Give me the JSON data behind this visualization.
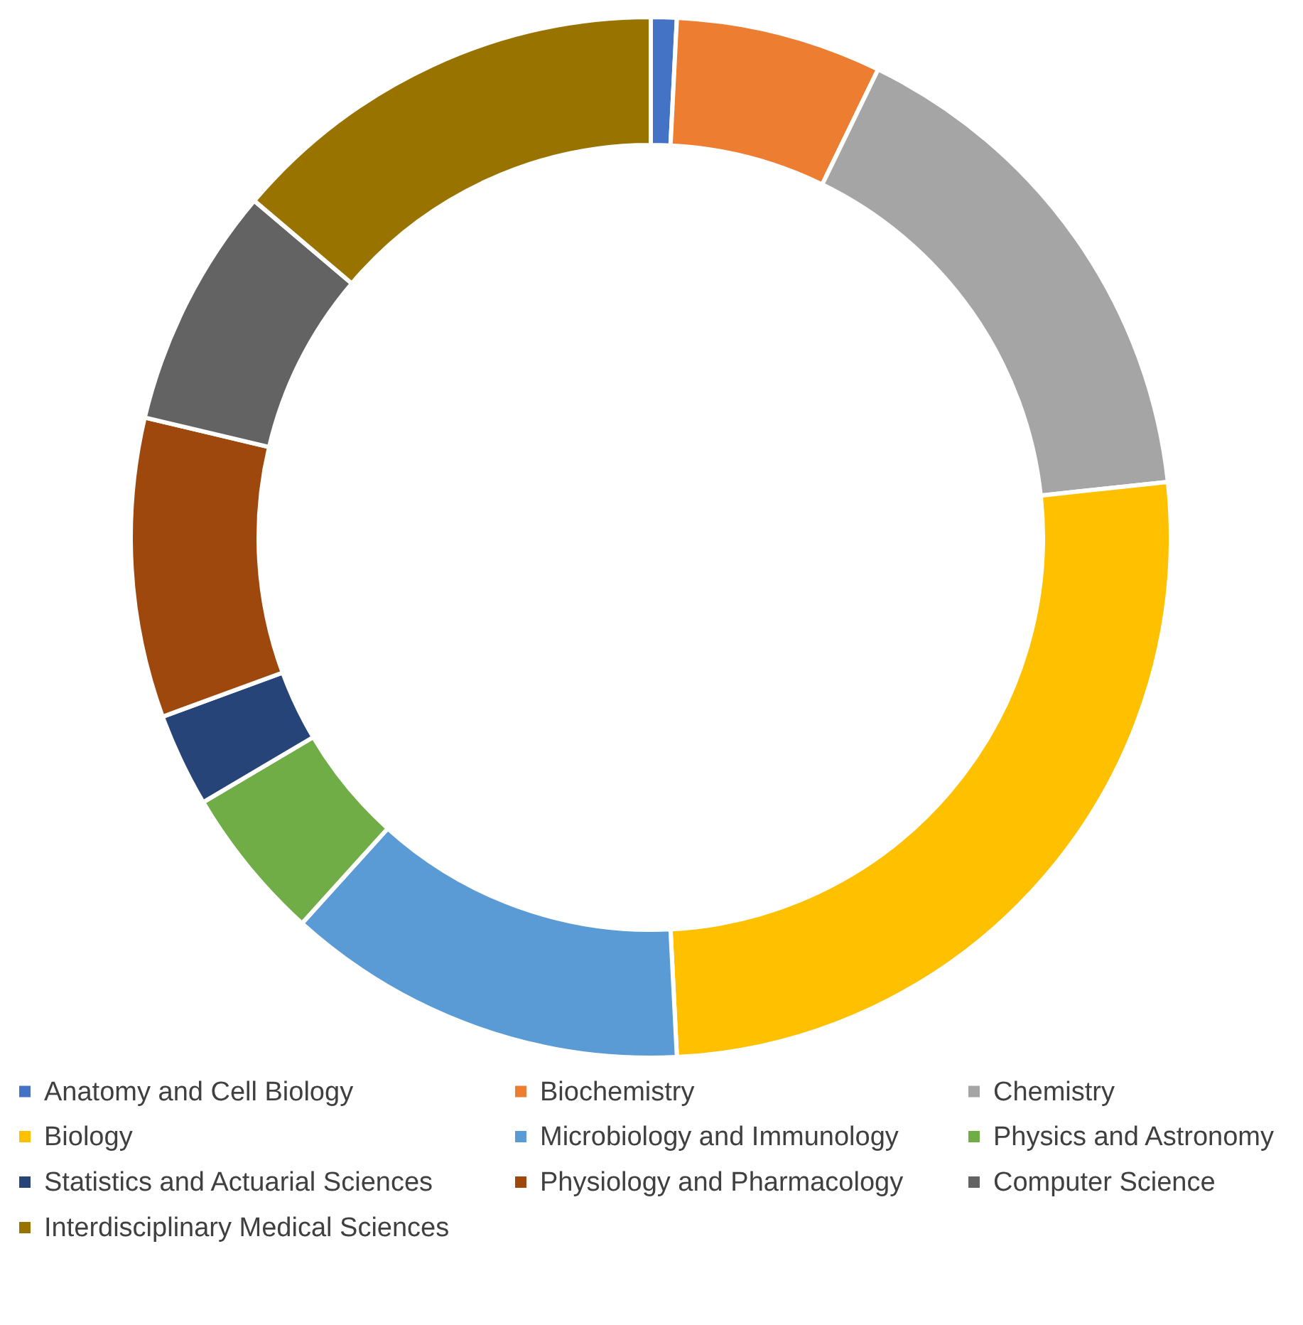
{
  "chart_data": {
    "type": "donut",
    "categories": [
      "Anatomy and Cell Biology",
      "Biochemistry",
      "Chemistry",
      "Biology",
      "Microbiology and Immunology",
      "Physics and Astronomy",
      "Statistics and Actuarial Sciences",
      "Physiology and Pharmacology",
      "Computer Science",
      "Interdisciplinary Medical Sciences"
    ],
    "values": [
      0.8,
      6.4,
      16.1,
      25.9,
      12.5,
      4.8,
      2.9,
      9.3,
      7.5,
      13.8
    ],
    "colors": [
      "#4472c4",
      "#ed7d31",
      "#a5a5a5",
      "#ffc000",
      "#5b9bd5",
      "#70ad47",
      "#264478",
      "#9e480e",
      "#636363",
      "#997300"
    ],
    "legend": "bottom"
  }
}
